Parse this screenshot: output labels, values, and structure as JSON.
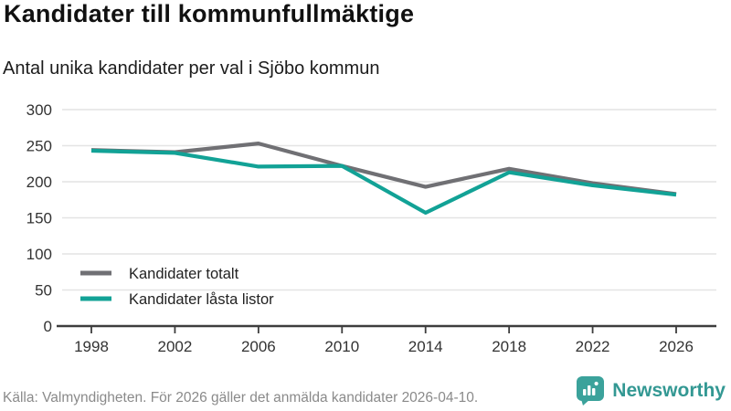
{
  "header": {
    "title": "Kandidater till kommunfullmäktige",
    "subtitle": "Antal unika kandidater per val i Sjöbo kommun"
  },
  "chart_data": {
    "type": "line",
    "x": [
      1998,
      2002,
      2006,
      2010,
      2014,
      2018,
      2022,
      2026
    ],
    "series": [
      {
        "name": "Kandidater totalt",
        "color": "#707074",
        "values": [
          244,
          241,
          253,
          222,
          193,
          218,
          198,
          183
        ]
      },
      {
        "name": "Kandidater låsta listor",
        "color": "#12a296",
        "values": [
          243,
          240,
          221,
          222,
          157,
          213,
          195,
          182
        ]
      }
    ],
    "ylim": [
      0,
      300
    ],
    "yticks": [
      0,
      50,
      100,
      150,
      200,
      250,
      300
    ],
    "grid": true,
    "legend_position": "inside-bottom-left",
    "title": "Kandidater till kommunfullmäktige",
    "xlabel": "",
    "ylabel": ""
  },
  "footer": {
    "source": "Källa: Valmyndigheten. För 2026 gäller det anmälda kandidater 2026-04-10.",
    "brand": "Newsworthy"
  },
  "colors": {
    "accent_teal": "#12a296",
    "line_gray": "#707074",
    "grid": "#e4e4e4",
    "axis": "#3d3d3d",
    "tick_label": "#333333",
    "legend_text": "#222222",
    "footer_text": "#8a8a8a",
    "brand_teal": "#339893",
    "brand_icon": "#3ba29b"
  }
}
